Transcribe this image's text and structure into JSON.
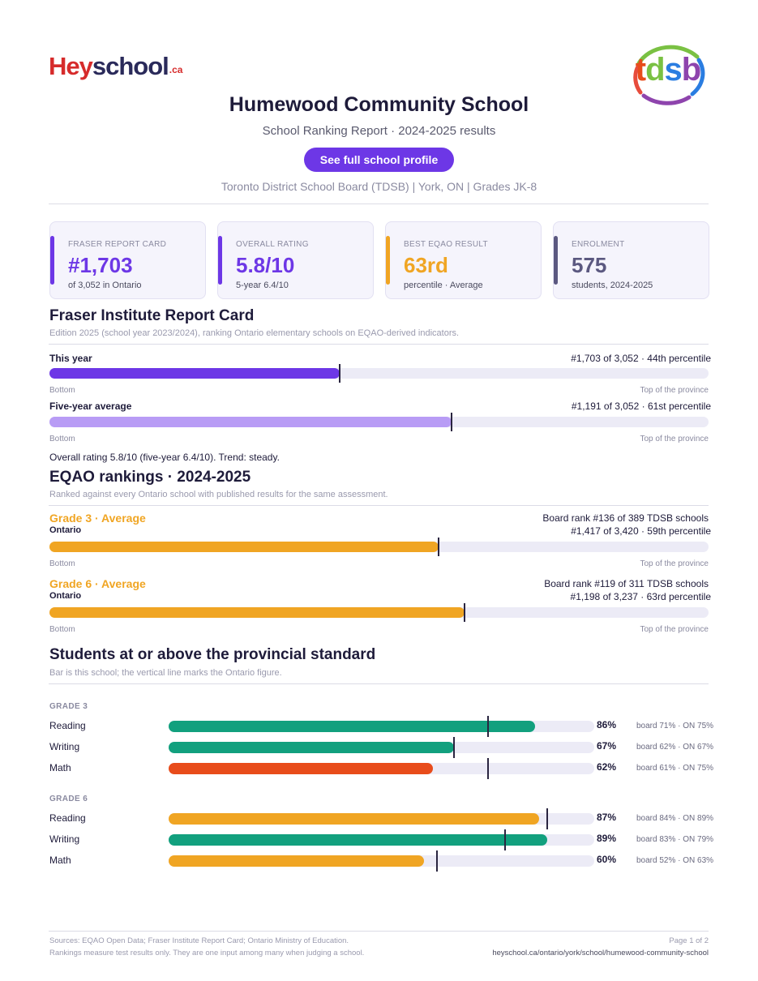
{
  "brand": {
    "hey": "Hey",
    "school": "school",
    "ca": ".ca",
    "tdsb": "tdsb"
  },
  "header": {
    "title": "Humewood Community School",
    "subtitle": "School Ranking Report  ·  2024-2025 results",
    "cta": "See full school profile",
    "meta": "Toronto District School Board (TDSB)  |  York, ON  |  Grades JK-8"
  },
  "cards": [
    {
      "label": "FRASER REPORT CARD",
      "value": "#1,703",
      "sub": "of 3,052 in Ontario",
      "color": "#6d37e6"
    },
    {
      "label": "OVERALL RATING",
      "value": "5.8/10",
      "sub": "5-year 6.4/10",
      "color": "#6d37e6"
    },
    {
      "label": "BEST EQAO RESULT",
      "value": "63rd",
      "sub": "percentile  ·  Average",
      "color": "#f0a523"
    },
    {
      "label": "ENROLMENT",
      "value": "575",
      "sub": "students, 2024-2025",
      "color": "#5b5880"
    }
  ],
  "fraser": {
    "title": "Fraser Institute Report Card",
    "note": "Edition 2025 (school year 2023/2024), ranking Ontario elementary schools on EQAO-derived indicators.",
    "rows": [
      {
        "label": "This year",
        "stat": "#1,703 of 3,052  ·  44th percentile",
        "percentile": 44,
        "color": "#6d37e6"
      },
      {
        "label": "Five-year average",
        "stat": "#1,191 of 3,052  ·  61st percentile",
        "percentile": 61,
        "color": "#b89cf5"
      }
    ],
    "bottom": "Bottom",
    "top": "Top of the province",
    "summary": "Overall rating 5.8/10 (five-year 6.4/10). Trend: steady."
  },
  "eqao": {
    "title": "EQAO rankings  ·  2024-2025",
    "note": "Ranked against every Ontario school with published results for the same assessment.",
    "rows": [
      {
        "grade": "Grade 3  ·  Average",
        "scope": "Ontario",
        "board": "Board rank #136 of 389 TDSB schools",
        "stat": "#1,417 of 3,420  ·  59th percentile",
        "percentile": 59
      },
      {
        "grade": "Grade 6  ·  Average",
        "scope": "Ontario",
        "board": "Board rank #119 of 311 TDSB schools",
        "stat": "#1,198 of 3,237  ·  63rd percentile",
        "percentile": 63
      }
    ],
    "bottom": "Bottom",
    "top": "Top of the province",
    "color": "#f0a523"
  },
  "standard": {
    "title": "Students at or above the provincial standard",
    "note": "Bar is this school; the vertical line marks the Ontario figure.",
    "groups": [
      {
        "label": "GRADE 3",
        "rows": [
          {
            "subject": "Reading",
            "pct": "86%",
            "value": 86,
            "ontario": 75,
            "cmp": "board 71%  ·  ON 75%",
            "color": "#12a07e"
          },
          {
            "subject": "Writing",
            "pct": "67%",
            "value": 67,
            "ontario": 67,
            "cmp": "board 62%  ·  ON 67%",
            "color": "#12a07e"
          },
          {
            "subject": "Math",
            "pct": "62%",
            "value": 62,
            "ontario": 75,
            "cmp": "board 61%  ·  ON 75%",
            "color": "#e84c1b"
          }
        ]
      },
      {
        "label": "GRADE 6",
        "rows": [
          {
            "subject": "Reading",
            "pct": "87%",
            "value": 87,
            "ontario": 89,
            "cmp": "board 84%  ·  ON 89%",
            "color": "#f0a523"
          },
          {
            "subject": "Writing",
            "pct": "89%",
            "value": 89,
            "ontario": 79,
            "cmp": "board 83%  ·  ON 79%",
            "color": "#12a07e"
          },
          {
            "subject": "Math",
            "pct": "60%",
            "value": 60,
            "ontario": 63,
            "cmp": "board 52%  ·  ON 63%",
            "color": "#f0a523"
          }
        ]
      }
    ]
  },
  "footer": {
    "sources": "Sources: EQAO Open Data; Fraser Institute Report Card; Ontario Ministry of Education.",
    "disclaimer": "Rankings measure test results only. They are one input among many when judging a school.",
    "page": "Page 1 of 2",
    "url": "heyschool.ca/ontario/york/school/humewood-community-school"
  }
}
